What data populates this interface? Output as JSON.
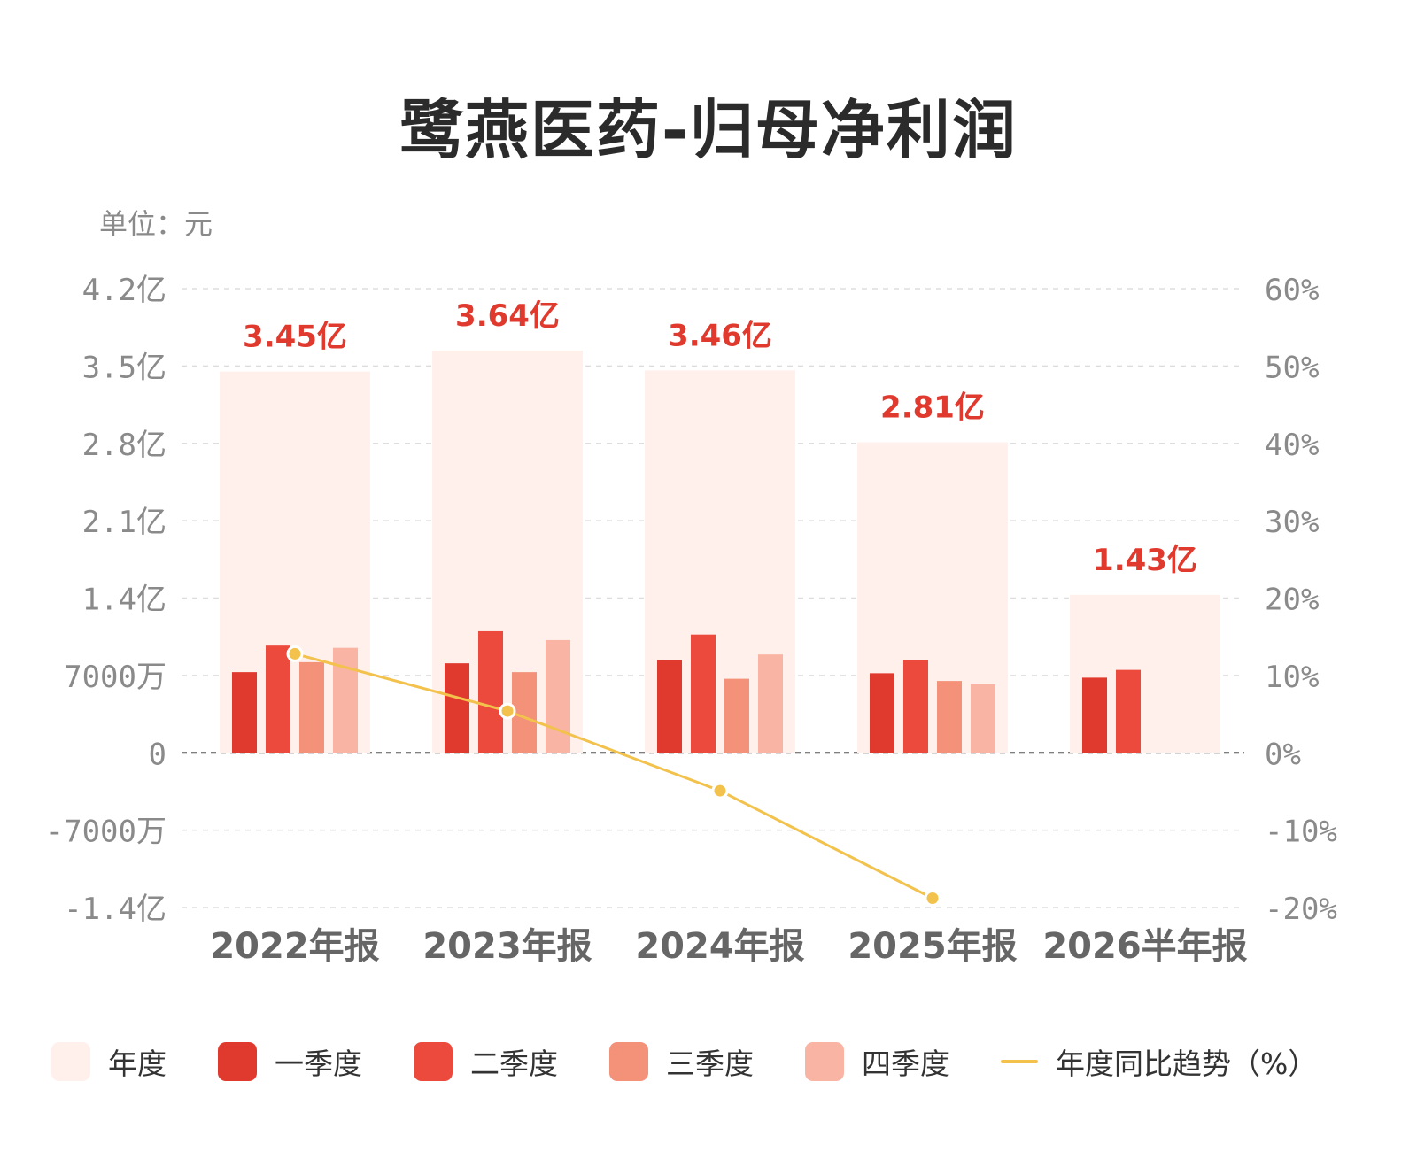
{
  "title": "鹭燕医药-归母净利润",
  "unit_label": "单位：元",
  "colors": {
    "annual": "#fff0ec",
    "q1": "#e03a2e",
    "q2": "#ec4a3c",
    "q3": "#f39179",
    "q4": "#f9b4a3",
    "trend": "#f2c24c",
    "value_label": "#e03a2e",
    "axis_text": "#8a8a8a",
    "category_text": "#666666"
  },
  "legend": [
    {
      "key": "annual",
      "label": "年度",
      "icon": "square"
    },
    {
      "key": "q1",
      "label": "一季度",
      "icon": "square"
    },
    {
      "key": "q2",
      "label": "二季度",
      "icon": "square"
    },
    {
      "key": "q3",
      "label": "三季度",
      "icon": "square"
    },
    {
      "key": "q4",
      "label": "四季度",
      "icon": "square"
    },
    {
      "key": "trend",
      "label": "年度同比趋势（%）",
      "icon": "line"
    }
  ],
  "chart_data": {
    "type": "bar",
    "categories": [
      "2022年报",
      "2023年报",
      "2024年报",
      "2025年报",
      "2026半年报"
    ],
    "annual_values": [
      345000000,
      364000000,
      346000000,
      281000000,
      143000000
    ],
    "annual_labels": [
      "3.45亿",
      "3.64亿",
      "3.46亿",
      "2.81亿",
      "1.43亿"
    ],
    "series": [
      {
        "name": "一季度",
        "key": "q1",
        "values": [
          73000000,
          81000000,
          84000000,
          72000000,
          68000000
        ]
      },
      {
        "name": "二季度",
        "key": "q2",
        "values": [
          97000000,
          110000000,
          107000000,
          84000000,
          75000000
        ]
      },
      {
        "name": "三季度",
        "key": "q3",
        "values": [
          82000000,
          73000000,
          67000000,
          65000000,
          null
        ]
      },
      {
        "name": "四季度",
        "key": "q4",
        "values": [
          95000000,
          102000000,
          89000000,
          62000000,
          null
        ]
      }
    ],
    "trend": {
      "name": "年度同比趋势（%）",
      "values": [
        12.8,
        5.4,
        -4.9,
        -18.8,
        null
      ]
    },
    "left_axis": {
      "ylim": [
        -140000000,
        420000000
      ],
      "ticks": [
        420000000,
        350000000,
        280000000,
        210000000,
        140000000,
        70000000,
        0,
        -70000000,
        -140000000
      ],
      "tick_labels": [
        "4.2亿",
        "3.5亿",
        "2.8亿",
        "2.1亿",
        "1.4亿",
        "7000万",
        "0",
        "-7000万",
        "-1.4亿"
      ]
    },
    "right_axis": {
      "ylim": [
        -20,
        60
      ],
      "ticks": [
        60,
        50,
        40,
        30,
        20,
        10,
        0,
        -10,
        -20
      ],
      "tick_labels": [
        "60%",
        "50%",
        "40%",
        "30%",
        "20%",
        "10%",
        "0%",
        "-10%",
        "-20%"
      ]
    },
    "grid": true
  }
}
